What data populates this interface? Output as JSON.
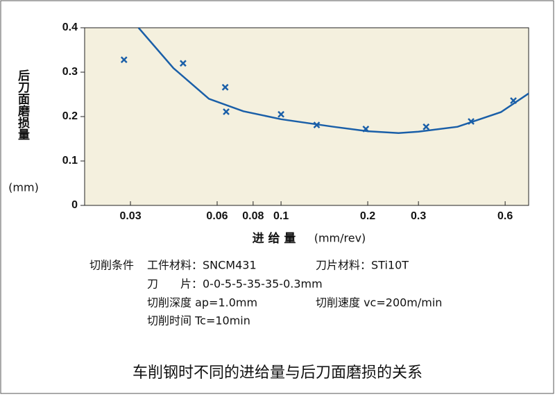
{
  "chart_data": {
    "type": "scatter",
    "y_label": "后刀面磨损量",
    "y_unit": "(mm)",
    "x_label": "进 给 量",
    "x_unit": "(mm/rev)",
    "xlim": [
      0.0208,
      0.724
    ],
    "ylim": [
      0,
      0.4
    ],
    "x_log": true,
    "xticks": [
      0.03,
      0.06,
      0.08,
      0.1,
      0.2,
      0.3,
      0.6
    ],
    "yticks": [
      0,
      0.1,
      0.2,
      0.3,
      0.4
    ],
    "series": [
      {
        "style": "marker",
        "color": "#1a5fa8",
        "x": [
          0.0285,
          0.0457,
          0.064,
          0.0645,
          0.1,
          0.133,
          0.197,
          0.319,
          0.457,
          0.641
        ],
        "values": [
          0.328,
          0.32,
          0.266,
          0.211,
          0.205,
          0.181,
          0.172,
          0.177,
          0.189,
          0.236
        ]
      },
      {
        "style": "line",
        "color": "#1a5fa8",
        "x": [
          0.032,
          0.0423,
          0.0562,
          0.074,
          0.1,
          0.152,
          0.2,
          0.256,
          0.3,
          0.41,
          0.58,
          0.724
        ],
        "values": [
          0.4,
          0.309,
          0.24,
          0.212,
          0.194,
          0.177,
          0.167,
          0.163,
          0.166,
          0.177,
          0.21,
          0.252
        ]
      }
    ]
  },
  "conditions": {
    "heading": "切削条件",
    "rows": [
      [
        "工件材料：SNCM431",
        "刀片材料：STi10T"
      ],
      [
        "刀　　片：0-0-5-5-35-35-0.3mm"
      ],
      [
        "切削深度 ap=1.0mm",
        "切削速度 vc=200m/min"
      ],
      [
        "切削时间 Tc=10min"
      ]
    ]
  },
  "caption": "车削钢时不同的进给量与后刀面磨损的关系"
}
